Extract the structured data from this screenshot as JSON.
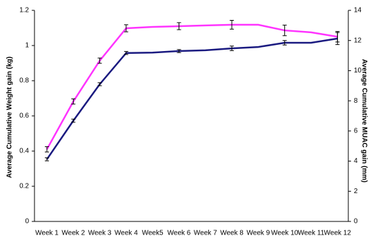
{
  "chart_data": {
    "type": "line",
    "categories": [
      "Week 1",
      "Week 2",
      "Week 3",
      "Week 4",
      "Week5",
      "Week 6",
      "Week 7",
      "Week 8",
      "Week 9",
      "Week 10",
      "Week 11",
      "Week 12"
    ],
    "ylabel": "Average Cumulative Weight gain (kg)",
    "y2label": "Average Cumulative MUAC gain (mm)",
    "ylim": [
      0,
      1.2
    ],
    "yticks": [
      0,
      0.2,
      0.4,
      0.6,
      0.8,
      1,
      1.2
    ],
    "y2lim": [
      0,
      14
    ],
    "y2ticks": [
      0,
      2,
      4,
      6,
      8,
      10,
      12,
      14
    ],
    "series": [
      {
        "color": "#ff33ff",
        "axis": "y",
        "values": [
          0.41,
          0.682,
          0.914,
          1.098,
          1.106,
          1.11,
          1.114,
          1.118,
          1.118,
          1.086,
          1.075,
          1.05
        ],
        "errors": [
          0.015,
          0.015,
          0.015,
          0.02,
          null,
          0.02,
          null,
          0.025,
          null,
          0.03,
          null,
          0.03
        ]
      },
      {
        "color": "#1a1a80",
        "axis": "y2",
        "values": [
          4.12,
          6.68,
          9.1,
          11.17,
          11.2,
          11.3,
          11.35,
          11.48,
          11.57,
          11.85,
          11.85,
          12.13
        ],
        "errors": [
          0.1,
          0.1,
          0.1,
          0.1,
          null,
          0.1,
          null,
          0.15,
          null,
          0.15,
          null,
          0.4
        ]
      }
    ]
  }
}
